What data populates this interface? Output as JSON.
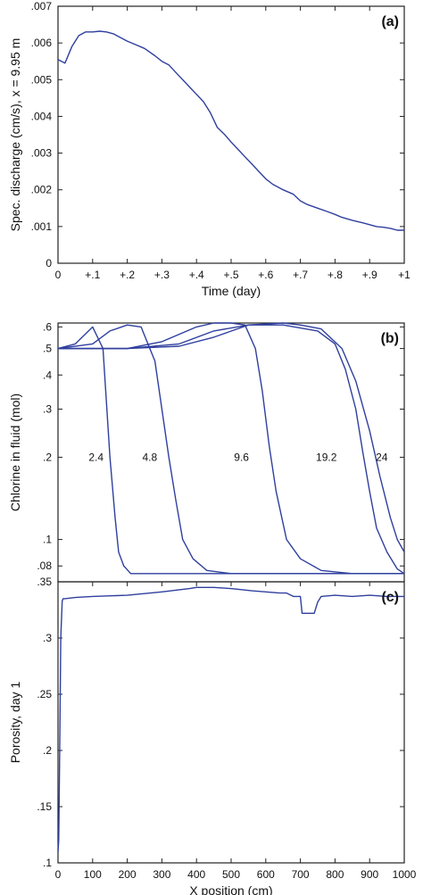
{
  "figure": {
    "colors": {
      "series": "#2f3f9e",
      "axis": "#222222"
    }
  },
  "chart_data": [
    {
      "panel": "(a)",
      "type": "line",
      "xlabel": "Time (day)",
      "ylabel": "Spec. discharge (cm/s), x = 9.95 m",
      "xlim": [
        0,
        1
      ],
      "ylim": [
        0,
        0.007
      ],
      "xticks": [
        0,
        0.1,
        0.2,
        0.3,
        0.4,
        0.5,
        0.6,
        0.7,
        0.8,
        0.9,
        1.0
      ],
      "xtick_labels": [
        "0",
        "+.1",
        "+.2",
        "+.3",
        "+.4",
        "+.5",
        "+.6",
        "+.7",
        "+.8",
        "+.9",
        "+1"
      ],
      "yticks": [
        0,
        0.001,
        0.002,
        0.003,
        0.004,
        0.005,
        0.006,
        0.007
      ],
      "ytick_labels": [
        "0",
        ".001",
        ".002",
        ".003",
        ".004",
        ".005",
        ".006",
        ".007"
      ],
      "series": [
        {
          "x": [
            0,
            0.02,
            0.04,
            0.06,
            0.08,
            0.1,
            0.12,
            0.14,
            0.16,
            0.18,
            0.2,
            0.22,
            0.25,
            0.28,
            0.3,
            0.32,
            0.35,
            0.38,
            0.4,
            0.42,
            0.44,
            0.46,
            0.48,
            0.5,
            0.52,
            0.54,
            0.56,
            0.58,
            0.6,
            0.62,
            0.65,
            0.68,
            0.7,
            0.72,
            0.75,
            0.78,
            0.8,
            0.82,
            0.85,
            0.88,
            0.9,
            0.92,
            0.94,
            0.96,
            0.98,
            1.0
          ],
          "y": [
            0.00555,
            0.00545,
            0.0059,
            0.0062,
            0.0063,
            0.0063,
            0.00632,
            0.0063,
            0.00625,
            0.00615,
            0.00605,
            0.00597,
            0.00585,
            0.00565,
            0.0055,
            0.0054,
            0.0051,
            0.0048,
            0.0046,
            0.0044,
            0.0041,
            0.0037,
            0.00352,
            0.0033,
            0.0031,
            0.0029,
            0.0027,
            0.0025,
            0.0023,
            0.00215,
            0.002,
            0.00188,
            0.0017,
            0.0016,
            0.0015,
            0.0014,
            0.00133,
            0.00125,
            0.00117,
            0.0011,
            0.00105,
            0.001,
            0.00098,
            0.00095,
            0.0009,
            0.0009
          ]
        }
      ]
    },
    {
      "panel": "(b)",
      "type": "line",
      "scale": "log",
      "xlabel": "",
      "ylabel": "Chlorine in fluid (mol)",
      "xlim": [
        0,
        1000
      ],
      "ylim": [
        0.07,
        0.62
      ],
      "yticks": [
        0.08,
        0.1,
        0.2,
        0.3,
        0.4,
        0.5,
        0.6
      ],
      "ytick_labels": [
        ".08",
        ".1",
        ".2",
        ".3",
        ".4",
        ".5",
        ".6"
      ],
      "annotations": [
        {
          "text": "2.4",
          "x": 110,
          "y": 0.2
        },
        {
          "text": "4.8",
          "x": 265,
          "y": 0.2
        },
        {
          "text": "9.6",
          "x": 530,
          "y": 0.2
        },
        {
          "text": "19.2",
          "x": 775,
          "y": 0.2
        },
        {
          "text": "24",
          "x": 935,
          "y": 0.2
        }
      ],
      "series": [
        {
          "x": [
            0,
            50,
            100,
            130,
            150,
            165,
            175,
            190,
            210,
            240,
            400,
            600,
            800,
            1000
          ],
          "y": [
            0.5,
            0.52,
            0.6,
            0.5,
            0.2,
            0.12,
            0.09,
            0.08,
            0.075,
            0.075,
            0.075,
            0.075,
            0.075,
            0.075
          ]
        },
        {
          "x": [
            0,
            100,
            150,
            200,
            240,
            280,
            300,
            320,
            340,
            360,
            390,
            430,
            500,
            700,
            1000
          ],
          "y": [
            0.5,
            0.52,
            0.58,
            0.61,
            0.6,
            0.45,
            0.3,
            0.2,
            0.14,
            0.1,
            0.085,
            0.077,
            0.075,
            0.075,
            0.075
          ]
        },
        {
          "x": [
            0,
            200,
            300,
            400,
            450,
            500,
            540,
            570,
            590,
            610,
            630,
            660,
            700,
            760,
            850,
            1000
          ],
          "y": [
            0.5,
            0.5,
            0.53,
            0.6,
            0.62,
            0.62,
            0.61,
            0.5,
            0.35,
            0.22,
            0.15,
            0.1,
            0.085,
            0.077,
            0.075,
            0.075
          ]
        },
        {
          "x": [
            0,
            200,
            350,
            450,
            550,
            650,
            750,
            800,
            830,
            860,
            880,
            900,
            920,
            950,
            980,
            1000
          ],
          "y": [
            0.5,
            0.5,
            0.51,
            0.55,
            0.61,
            0.61,
            0.58,
            0.52,
            0.42,
            0.3,
            0.21,
            0.15,
            0.11,
            0.09,
            0.078,
            0.075
          ]
        },
        {
          "x": [
            0,
            200,
            350,
            450,
            550,
            650,
            700,
            760,
            820,
            860,
            900,
            930,
            960,
            980,
            1000
          ],
          "y": [
            0.5,
            0.5,
            0.52,
            0.58,
            0.61,
            0.62,
            0.61,
            0.59,
            0.5,
            0.38,
            0.25,
            0.17,
            0.12,
            0.1,
            0.09
          ]
        }
      ]
    },
    {
      "panel": "(c)",
      "type": "line",
      "xlabel": "X position (cm)",
      "ylabel": "Porosity, day 1",
      "xlim": [
        0,
        1000
      ],
      "ylim": [
        0.1,
        0.35
      ],
      "xticks": [
        0,
        100,
        200,
        300,
        400,
        500,
        600,
        700,
        800,
        900,
        1000
      ],
      "xtick_labels": [
        "0",
        "100",
        "200",
        "300",
        "400",
        "500",
        "600",
        "700",
        "800",
        "900",
        "1000"
      ],
      "yticks": [
        0.1,
        0.15,
        0.2,
        0.25,
        0.3,
        0.35
      ],
      "ytick_labels": [
        ".1",
        ".15",
        ".2",
        ".25",
        ".3",
        ".35"
      ],
      "series": [
        {
          "x": [
            0,
            2,
            5,
            8,
            12,
            15,
            20,
            50,
            100,
            200,
            300,
            380,
            400,
            450,
            500,
            560,
            600,
            640,
            660,
            680,
            700,
            705,
            720,
            740,
            750,
            760,
            800,
            850,
            900,
            950,
            1000
          ],
          "y": [
            0.11,
            0.12,
            0.2,
            0.3,
            0.333,
            0.335,
            0.335,
            0.336,
            0.337,
            0.338,
            0.341,
            0.344,
            0.345,
            0.345,
            0.344,
            0.342,
            0.341,
            0.34,
            0.34,
            0.337,
            0.337,
            0.322,
            0.322,
            0.322,
            0.332,
            0.337,
            0.338,
            0.337,
            0.338,
            0.337,
            0.337
          ]
        }
      ]
    }
  ]
}
